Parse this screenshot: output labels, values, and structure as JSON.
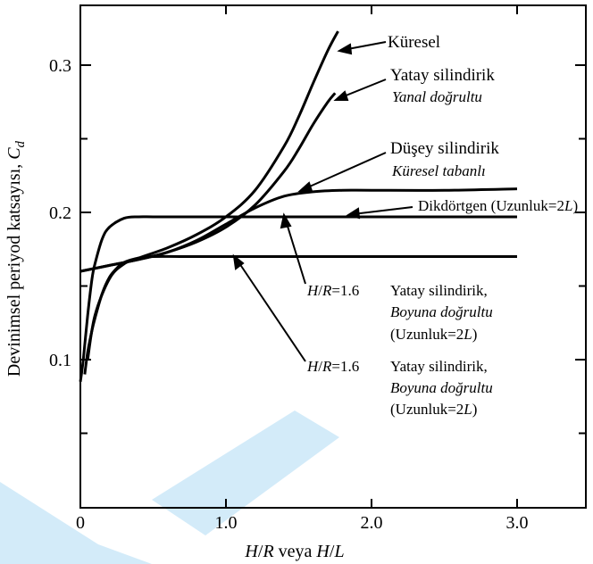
{
  "chart_data": {
    "type": "line",
    "xlabel_parts": [
      "H",
      "/",
      "R",
      " veya ",
      "H",
      "/",
      "L"
    ],
    "ylabel_text": "Devinimsel periyod katsayısı,",
    "ylabel_symbol": "C",
    "ylabel_sub": "d",
    "xlim": [
      0,
      3.5
    ],
    "ylim": [
      0.02,
      0.34
    ],
    "x_ticks": [
      0,
      1.0,
      2.0,
      3.0
    ],
    "x_tick_labels": [
      "0",
      "1.0",
      "2.0",
      "3.0"
    ],
    "y_ticks": [
      0.1,
      0.2,
      0.3
    ],
    "y_tick_labels": [
      "0.1",
      "0.2",
      "0.3"
    ],
    "grid": false,
    "series": [
      {
        "key": "kuresel",
        "x": [
          0.05,
          0.1,
          0.2,
          0.3,
          0.4,
          0.6,
          0.8,
          1.0,
          1.2,
          1.4,
          1.5,
          1.6,
          1.7,
          1.77
        ],
        "y": [
          0.1,
          0.13,
          0.155,
          0.165,
          0.169,
          0.176,
          0.185,
          0.197,
          0.215,
          0.245,
          0.265,
          0.288,
          0.31,
          0.323
        ]
      },
      {
        "key": "yatay_yanal",
        "x": [
          0.0,
          0.2,
          0.4,
          0.6,
          0.8,
          1.0,
          1.2,
          1.4,
          1.5,
          1.6,
          1.7,
          1.75
        ],
        "y": [
          0.16,
          0.164,
          0.168,
          0.173,
          0.18,
          0.19,
          0.205,
          0.228,
          0.243,
          0.26,
          0.275,
          0.281
        ]
      },
      {
        "key": "dusey_kuresel",
        "x": [
          0.0,
          0.2,
          0.4,
          0.6,
          0.8,
          1.0,
          1.2,
          1.4,
          1.6,
          1.8,
          2.0,
          2.5,
          3.0
        ],
        "y": [
          0.16,
          0.164,
          0.168,
          0.173,
          0.181,
          0.192,
          0.203,
          0.211,
          0.214,
          0.215,
          0.215,
          0.215,
          0.216
        ]
      },
      {
        "key": "dikdortgen",
        "x": [
          0.0,
          0.02,
          0.05,
          0.08,
          0.1,
          0.15,
          0.2,
          0.3,
          0.4,
          0.5,
          0.7,
          1.0,
          2.0,
          3.0
        ],
        "y": [
          0.085,
          0.1,
          0.13,
          0.155,
          0.165,
          0.182,
          0.19,
          0.196,
          0.197,
          0.197,
          0.197,
          0.197,
          0.197,
          0.197
        ]
      },
      {
        "key": "yatay_boyuna",
        "x": [
          0.03,
          0.05,
          0.08,
          0.1,
          0.15,
          0.2,
          0.25,
          0.3,
          0.4,
          0.5,
          0.7,
          1.0,
          2.0,
          3.0
        ],
        "y": [
          0.09,
          0.105,
          0.12,
          0.128,
          0.145,
          0.156,
          0.162,
          0.166,
          0.169,
          0.17,
          0.17,
          0.17,
          0.17,
          0.17
        ]
      }
    ],
    "labels": {
      "kuresel": "Küresel",
      "yatay_line1": "Yatay silindirik",
      "yatay_line2": "Yanal doğrultu",
      "dusey_line1": "Düşey silindirik",
      "dusey_line2": "Küresel tabanlı",
      "dikdortgen_a": "Dikdörtgen (Uzunluk=2",
      "dikdortgen_b": "L",
      "dikdortgen_c": ")",
      "hr_a": "H",
      "hr_b": "/",
      "hr_c": "R",
      "hr_d": "=1.6",
      "boyuna_line1": "Yatay silindirik,",
      "boyuna_line2": "Boyuna doğrultu",
      "uzunluk_a": "(Uzunluk=2",
      "uzunluk_b": "L",
      "uzunluk_c": ")"
    }
  },
  "watermark_color": "#c5e3f6"
}
